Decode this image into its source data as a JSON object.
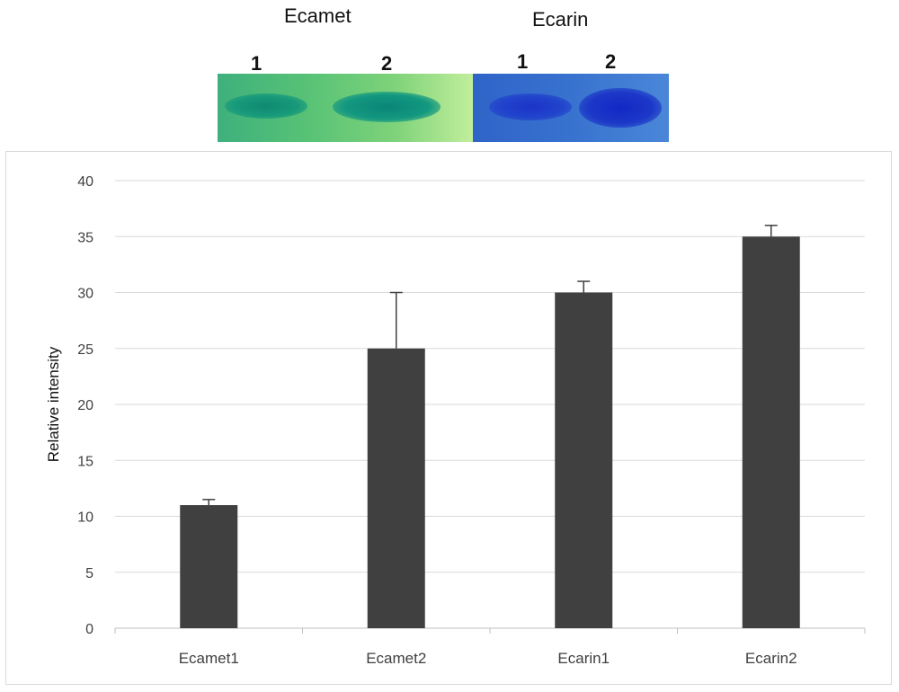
{
  "gel": {
    "ecamet_title": "Ecamet",
    "ecarin_title": "Ecarin",
    "ecamet_lanes": [
      "1",
      "2"
    ],
    "ecarin_lanes": [
      "1",
      "2"
    ]
  },
  "chart_data": {
    "type": "bar",
    "categories": [
      "Ecamet1",
      "Ecamet2",
      "Ecarin1",
      "Ecarin2"
    ],
    "values": [
      11,
      25,
      30,
      35
    ],
    "errors": [
      0.5,
      5,
      1,
      1
    ],
    "ylabel": "Relative intensity",
    "ylim": [
      0,
      40
    ],
    "yticks": [
      0,
      5,
      10,
      15,
      20,
      25,
      30,
      35,
      40
    ],
    "grid": true,
    "bar_color": "#404040"
  }
}
